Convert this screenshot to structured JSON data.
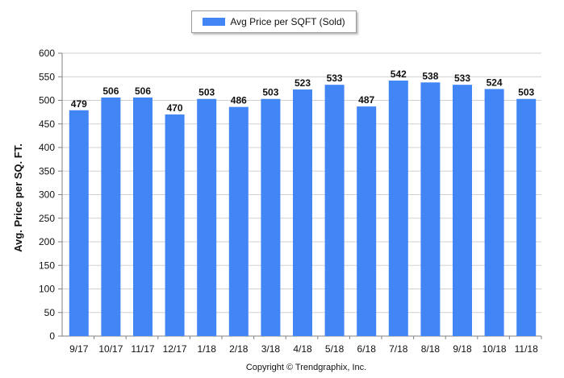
{
  "legend": {
    "label": "Avg Price per SQFT (Sold)"
  },
  "colors": {
    "bar": "#4285f4",
    "grid": "#d0d0d0",
    "axis": "#808080"
  },
  "footer": {
    "copyright": "Copyright © Trendgraphix, Inc."
  },
  "chart_data": {
    "type": "bar",
    "ylabel": "Avg. Price per SQ. FT.",
    "xlabel": "",
    "categories": [
      "9/17",
      "10/17",
      "11/17",
      "12/17",
      "1/18",
      "2/18",
      "3/18",
      "4/18",
      "5/18",
      "6/18",
      "7/18",
      "8/18",
      "9/18",
      "10/18",
      "11/18"
    ],
    "values": [
      479,
      506,
      506,
      470,
      503,
      486,
      503,
      523,
      533,
      487,
      542,
      538,
      533,
      524,
      503
    ],
    "ylim": [
      0,
      600
    ],
    "yticks": [
      0,
      50,
      100,
      150,
      200,
      250,
      300,
      350,
      400,
      450,
      500,
      550,
      600
    ],
    "grid": true,
    "data_labels": true,
    "legend_position": "top-center"
  }
}
